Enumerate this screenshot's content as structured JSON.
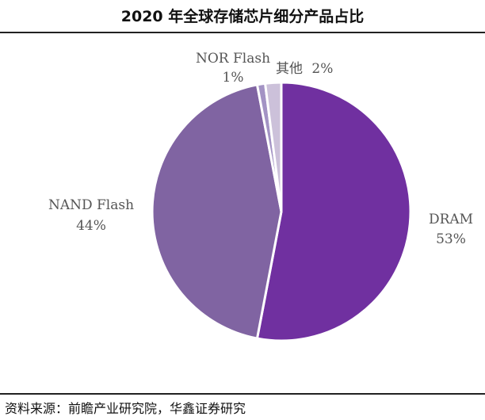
{
  "chart_data": {
    "type": "pie",
    "title": "2020 年全球存储芯片细分产品占比",
    "slices": [
      {
        "label": "DRAM",
        "value": 53,
        "value_label": "53%",
        "color": "#7030a0"
      },
      {
        "label": "NAND Flash",
        "value": 44,
        "value_label": "44%",
        "color": "#8064a2"
      },
      {
        "label": "NOR Flash",
        "value": 1,
        "value_label": "1%",
        "color": "#a393c4"
      },
      {
        "label": "其他",
        "value": 2,
        "value_label": "2%",
        "color": "#ccc1da"
      }
    ]
  },
  "source": "资料来源：前瞻产业研究院，华鑫证券研究"
}
